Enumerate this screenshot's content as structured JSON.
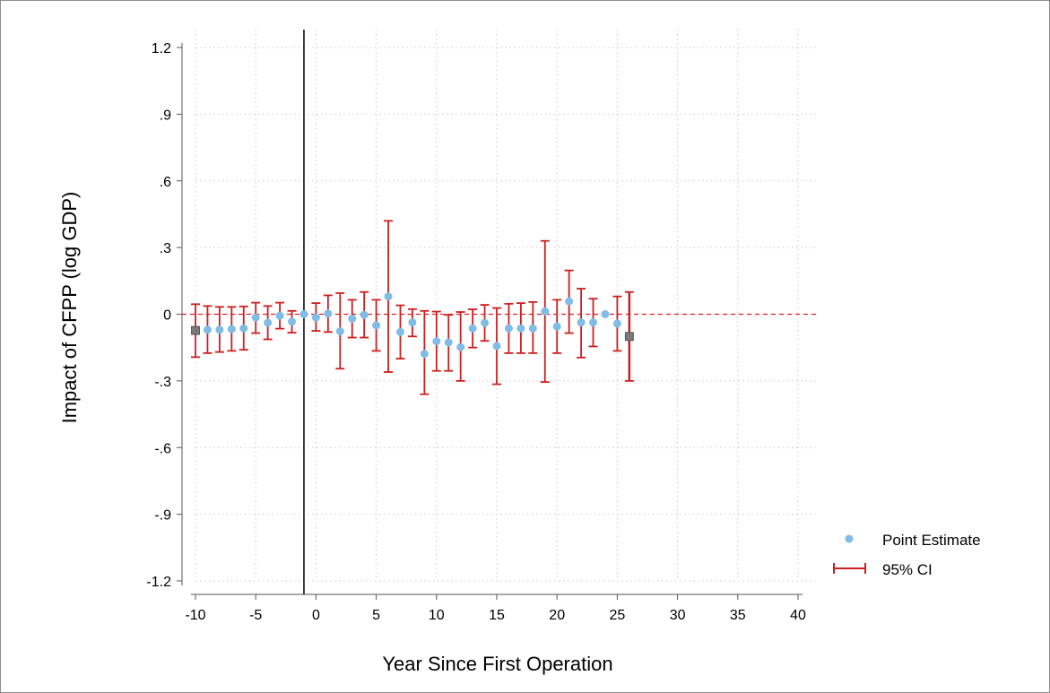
{
  "chart_data": {
    "type": "scatter",
    "title": "",
    "xlabel": "Year Since First Operation",
    "ylabel": "Impact of CFPP (log GDP)",
    "xlim": [
      -10,
      40
    ],
    "ylim": [
      -1.2,
      1.2
    ],
    "x_ticks": [
      -10,
      -5,
      0,
      5,
      10,
      15,
      20,
      25,
      30,
      35,
      40
    ],
    "x_tick_labels": [
      "-10",
      "-5",
      "0",
      "5",
      "10",
      "15",
      "20",
      "25",
      "30",
      "35",
      "40"
    ],
    "y_ticks": [
      1.2,
      0.9,
      0.6,
      0.3,
      0,
      -0.3,
      -0.6,
      -0.9,
      -1.2
    ],
    "y_tick_labels": [
      "1.2",
      ".9",
      ".6",
      ".3",
      "0",
      "-.3",
      "-.6",
      "-.9",
      "-1.2"
    ],
    "grid": true,
    "reference_vertical_line": -1,
    "reference_horizontal_line": 0,
    "legend_position": "right",
    "colors": {
      "point": "#7fbde6",
      "ci": "#cc1f1f",
      "ref_h": "#e02020",
      "ref_v": "#000000",
      "endpoint": "#7a7a7a"
    },
    "series": [
      {
        "name": "Point Estimate",
        "x": [
          -10,
          -9,
          -8,
          -7,
          -6,
          -5,
          -4,
          -3,
          -2,
          -1,
          0,
          1,
          2,
          3,
          4,
          5,
          6,
          7,
          8,
          9,
          10,
          11,
          12,
          13,
          14,
          15,
          16,
          17,
          18,
          19,
          20,
          21,
          22,
          23,
          24,
          25,
          26
        ],
        "y": [
          -0.073,
          -0.07,
          -0.07,
          -0.067,
          -0.064,
          -0.015,
          -0.038,
          -0.007,
          -0.033,
          0,
          -0.015,
          0.003,
          -0.077,
          -0.02,
          -0.003,
          -0.05,
          0.08,
          -0.08,
          -0.037,
          -0.178,
          -0.122,
          -0.127,
          -0.148,
          -0.064,
          -0.039,
          -0.143,
          -0.064,
          -0.064,
          -0.064,
          0.013,
          -0.055,
          0.058,
          -0.037,
          -0.037,
          0,
          -0.042,
          -0.1
        ]
      },
      {
        "name": "95% CI",
        "lower": [
          -0.193,
          -0.175,
          -0.17,
          -0.165,
          -0.16,
          -0.085,
          -0.113,
          -0.065,
          -0.083,
          0,
          -0.075,
          -0.08,
          -0.245,
          -0.105,
          -0.105,
          -0.165,
          -0.26,
          -0.2,
          -0.1,
          -0.36,
          -0.255,
          -0.255,
          -0.3,
          -0.15,
          -0.12,
          -0.315,
          -0.175,
          -0.175,
          -0.175,
          -0.305,
          -0.175,
          -0.085,
          -0.195,
          -0.145,
          0,
          -0.165,
          -0.3
        ],
        "upper": [
          0.045,
          0.037,
          0.033,
          0.033,
          0.035,
          0.052,
          0.037,
          0.052,
          0.015,
          0,
          0.05,
          0.085,
          0.095,
          0.065,
          0.1,
          0.065,
          0.42,
          0.04,
          0.023,
          0.015,
          0.012,
          -0.003,
          0.01,
          0.022,
          0.042,
          0.028,
          0.047,
          0.05,
          0.055,
          0.33,
          0.065,
          0.197,
          0.115,
          0.07,
          0,
          0.08,
          0.1
        ]
      }
    ]
  },
  "legend": {
    "point_label": "Point Estimate",
    "ci_label": "95% CI"
  }
}
